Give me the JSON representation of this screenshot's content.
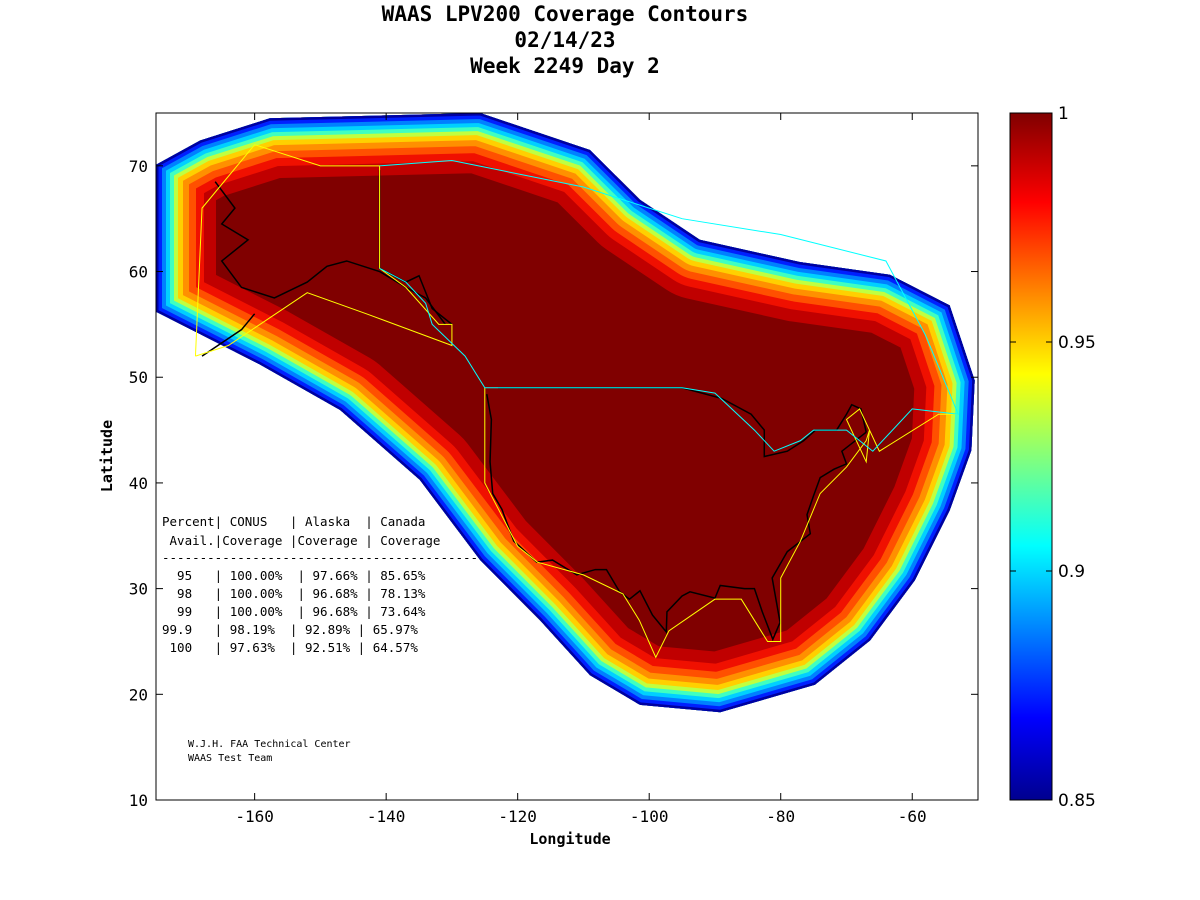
{
  "chart_data": {
    "type": "heatmap",
    "title_lines": [
      "WAAS LPV200 Coverage Contours",
      "02/14/23",
      "Week 2249 Day 2"
    ],
    "xlabel": "Longitude",
    "ylabel": "Latitude",
    "xlim": [
      -175,
      -50
    ],
    "ylim": [
      10,
      75
    ],
    "xticks": [
      -160,
      -140,
      -120,
      -100,
      -80,
      -60
    ],
    "yticks": [
      10,
      20,
      30,
      40,
      50,
      60,
      70
    ],
    "colorbar": {
      "range": [
        0.85,
        1
      ],
      "ticks": [
        0.85,
        0.9,
        0.95,
        1
      ],
      "tick_labels": [
        "0.85",
        "0.9",
        "0.95",
        "1"
      ],
      "colormap": "jet"
    },
    "coverage_boundary_approx": [
      [
        -175,
        70.1
      ],
      [
        -168.3,
        72.4
      ],
      [
        -157.7,
        74.5
      ],
      [
        -125.7,
        75
      ],
      [
        -109,
        71.5
      ],
      [
        -101.4,
        66.8
      ],
      [
        -92.3,
        63
      ],
      [
        -77.1,
        60.9
      ],
      [
        -63.4,
        59.7
      ],
      [
        -54.3,
        56.8
      ],
      [
        -50.5,
        49.7
      ],
      [
        -51,
        43.1
      ],
      [
        -54.3,
        37.4
      ],
      [
        -59.6,
        30.8
      ],
      [
        -66.4,
        25.1
      ],
      [
        -74.8,
        20.9
      ],
      [
        -89.2,
        18.3
      ],
      [
        -101.4,
        19
      ],
      [
        -109,
        21.8
      ],
      [
        -116.6,
        27
      ],
      [
        -125.7,
        32.7
      ],
      [
        -134.9,
        40.3
      ],
      [
        -147,
        46.9
      ],
      [
        -159.2,
        51.2
      ],
      [
        -175,
        56.2
      ]
    ],
    "table": {
      "header1": "Percent| CONUS   | Alaska  | Canada",
      "header2": " Avail.|Coverage |Coverage | Coverage",
      "divider": "------------------------------------------",
      "rows": [
        "  95   | 100.00%  | 97.66% | 85.65%",
        "  98   | 100.00%  | 96.68% | 78.13%",
        "  99   | 100.00%  | 96.68% | 73.64%",
        "99.9   | 98.19%  | 92.89% | 65.97%",
        " 100   | 97.63%  | 92.51% | 64.57%"
      ]
    },
    "credit_lines": [
      "W.J.H. FAA Technical Center",
      "WAAS Test Team"
    ]
  }
}
